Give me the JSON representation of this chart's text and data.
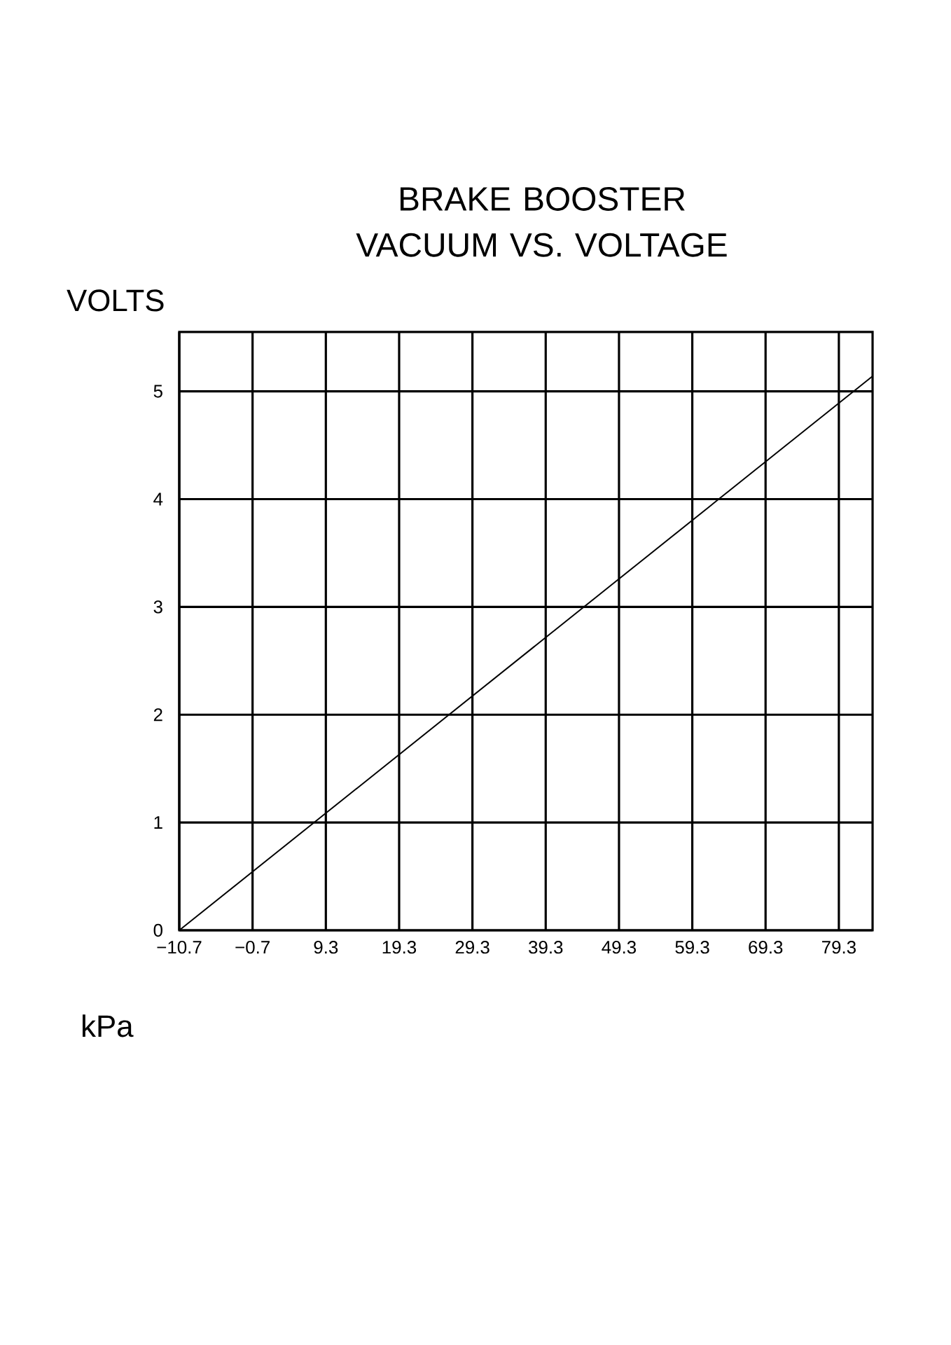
{
  "chart_data": {
    "type": "line",
    "title": "BRAKE BOOSTER VACUUM VS. VOLTAGE",
    "xlabel": "kPa",
    "ylabel": "VOLTS",
    "x": [
      -10.7,
      83.9
    ],
    "series": [
      {
        "color": "#000000",
        "values": [
          0,
          5.14
        ]
      }
    ],
    "xlim": [
      -10.7,
      83.9
    ],
    "ylim": [
      0,
      5.55
    ],
    "xticks": [
      {
        "value": -10.7,
        "label": "−10.7"
      },
      {
        "value": -0.7,
        "label": "−0.7"
      },
      9.3,
      19.3,
      29.3,
      39.3,
      49.3,
      59.3,
      69.3,
      79.3
    ],
    "yticks": [
      0,
      1,
      2,
      3,
      4,
      5
    ],
    "grid": true,
    "marker": "none",
    "line_style": "solid"
  }
}
